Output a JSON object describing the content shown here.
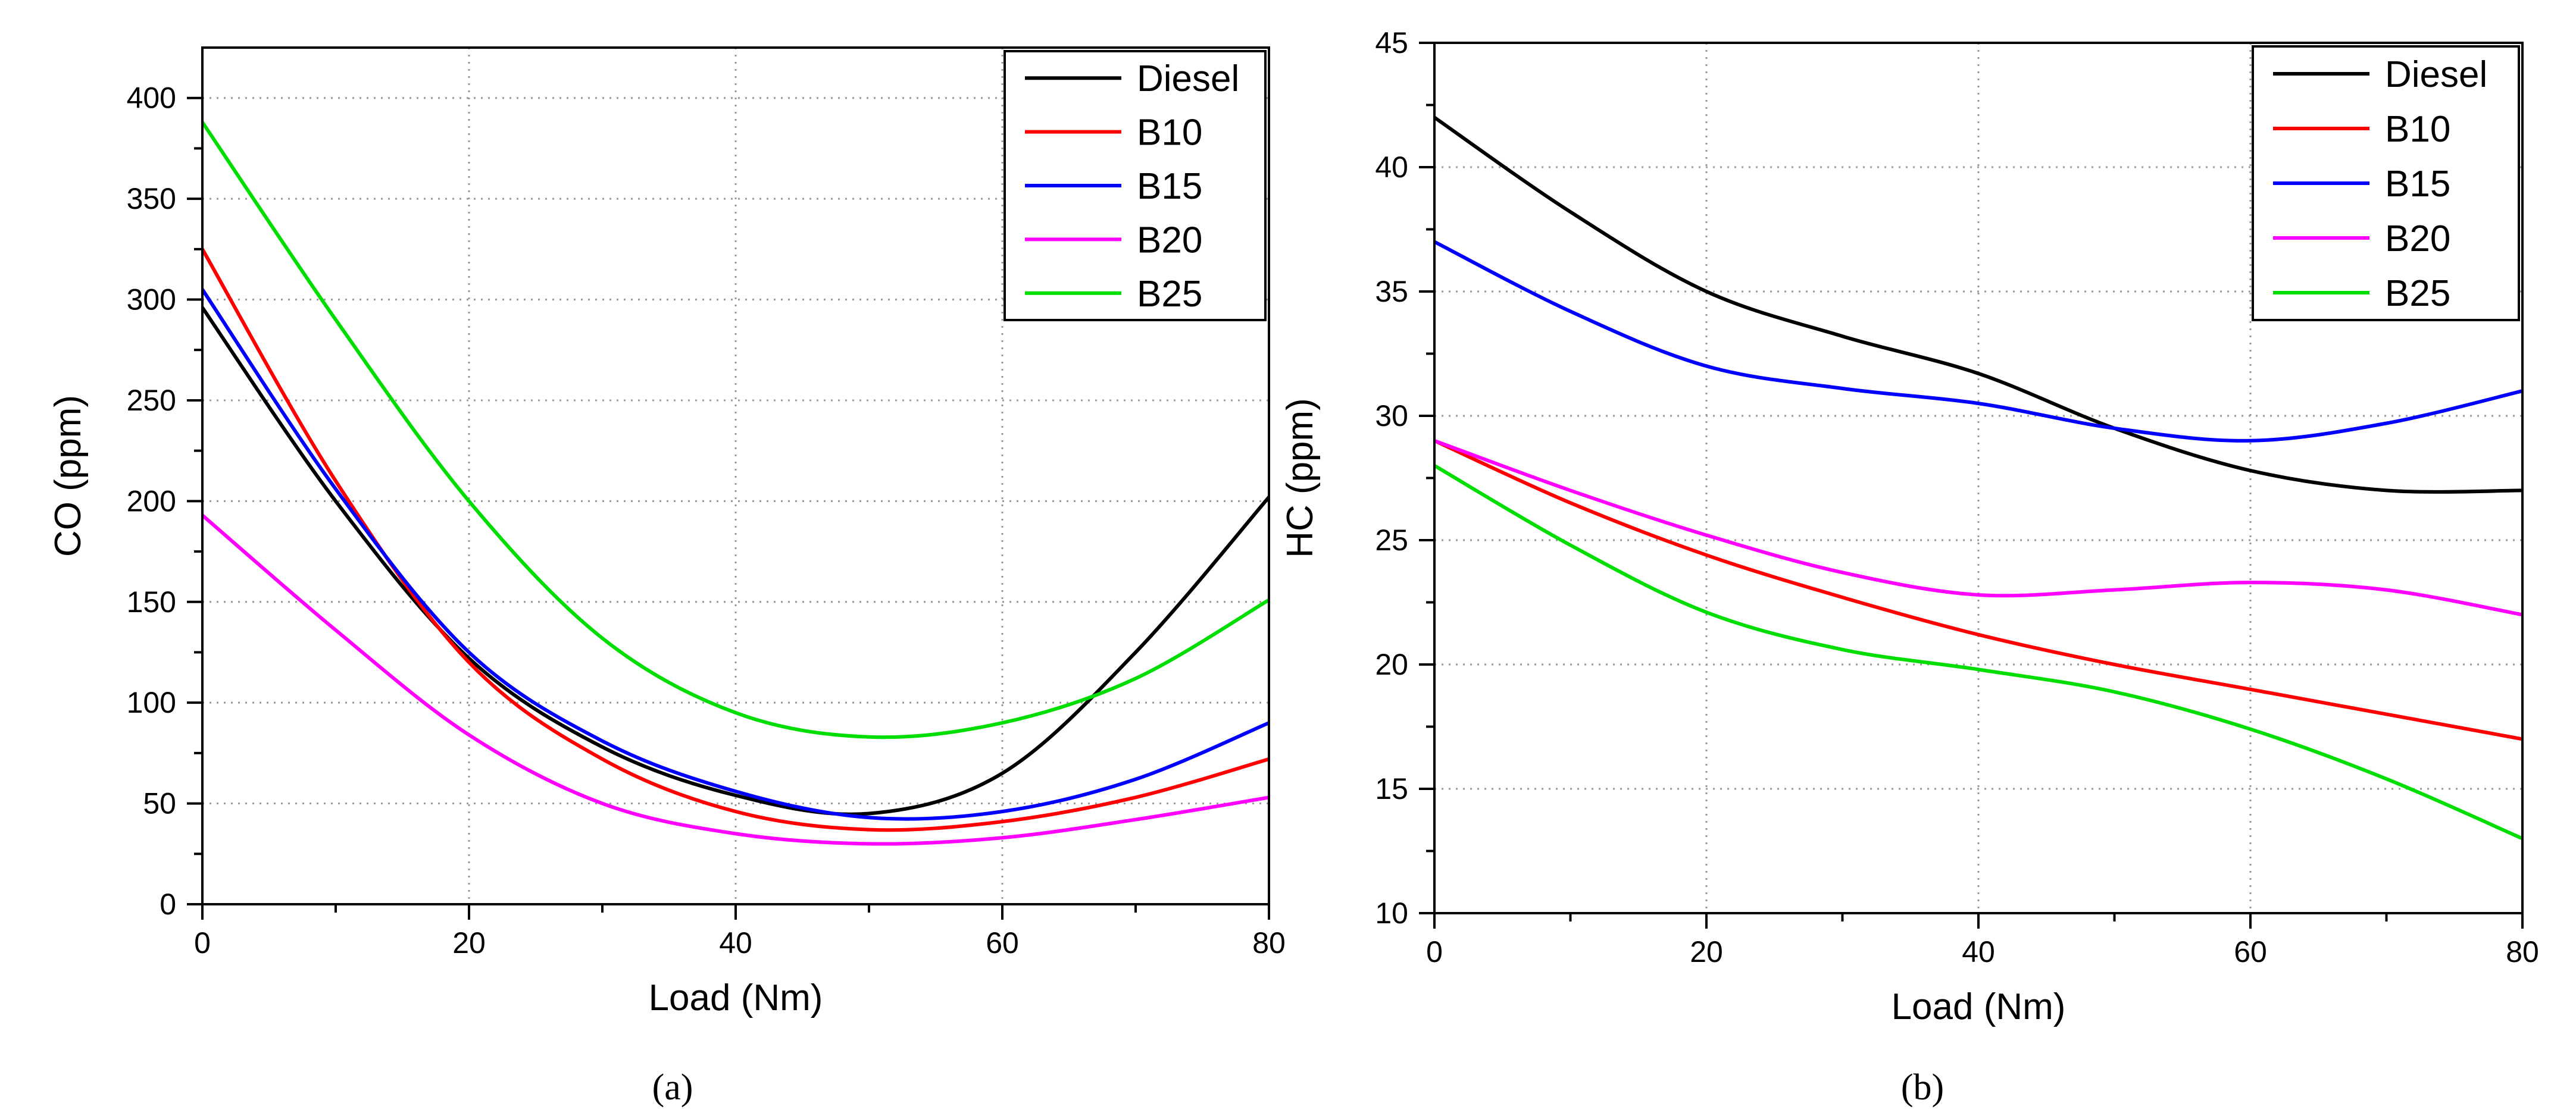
{
  "chart_data": [
    {
      "panel": "a",
      "type": "line",
      "xlabel": "Load (Nm)",
      "ylabel": "CO (ppm)",
      "xlim": [
        0,
        80
      ],
      "ylim": [
        0,
        425
      ],
      "xticks": [
        0,
        20,
        40,
        60,
        80
      ],
      "yticks": [
        0,
        50,
        100,
        150,
        200,
        250,
        300,
        350,
        400
      ],
      "grid": true,
      "legend": "top-right",
      "caption": "(a)",
      "series": [
        {
          "name": "Diesel",
          "color": "#000000",
          "x": [
            0,
            10,
            20,
            30,
            40,
            50,
            60,
            70,
            80
          ],
          "values": [
            296,
            200,
            122,
            78,
            54,
            45,
            65,
            125,
            202
          ]
        },
        {
          "name": "B10",
          "color": "#ff0000",
          "x": [
            0,
            10,
            20,
            30,
            40,
            50,
            60,
            70,
            80
          ],
          "values": [
            325,
            210,
            120,
            72,
            46,
            37,
            41,
            53,
            72
          ]
        },
        {
          "name": "B15",
          "color": "#0000ff",
          "x": [
            0,
            10,
            20,
            30,
            40,
            50,
            60,
            70,
            80
          ],
          "values": [
            305,
            206,
            125,
            81,
            56,
            43,
            46,
            62,
            90
          ]
        },
        {
          "name": "B20",
          "color": "#ff00ff",
          "x": [
            0,
            10,
            20,
            30,
            40,
            50,
            60,
            70,
            80
          ],
          "values": [
            193,
            136,
            84,
            50,
            35,
            30,
            33,
            42,
            53
          ]
        },
        {
          "name": "B25",
          "color": "#00dd00",
          "x": [
            0,
            10,
            20,
            30,
            40,
            50,
            60,
            70,
            80
          ],
          "values": [
            388,
            290,
            200,
            132,
            95,
            83,
            90,
            112,
            151
          ]
        }
      ]
    },
    {
      "panel": "b",
      "type": "line",
      "xlabel": "Load (Nm)",
      "ylabel": "HC (ppm)",
      "xlim": [
        0,
        80
      ],
      "ylim": [
        10,
        45
      ],
      "xticks": [
        0,
        20,
        40,
        60,
        80
      ],
      "yticks": [
        10,
        15,
        20,
        25,
        30,
        35,
        40,
        45
      ],
      "grid": true,
      "legend": "top-right",
      "caption": "(b)",
      "series": [
        {
          "name": "Diesel",
          "color": "#000000",
          "x": [
            0,
            10,
            20,
            30,
            40,
            50,
            60,
            70,
            80
          ],
          "values": [
            42,
            38.2,
            35,
            33.2,
            31.7,
            29.5,
            27.8,
            27,
            27
          ]
        },
        {
          "name": "B10",
          "color": "#ff0000",
          "x": [
            0,
            10,
            20,
            30,
            40,
            50,
            60,
            70,
            80
          ],
          "values": [
            29,
            26.5,
            24.4,
            22.7,
            21.2,
            20,
            19,
            18,
            17
          ]
        },
        {
          "name": "B15",
          "color": "#0000ff",
          "x": [
            0,
            10,
            20,
            30,
            40,
            50,
            60,
            70,
            80
          ],
          "values": [
            37,
            34.2,
            32,
            31.1,
            30.5,
            29.5,
            29,
            29.7,
            31
          ]
        },
        {
          "name": "B20",
          "color": "#ff00ff",
          "x": [
            0,
            10,
            20,
            30,
            40,
            50,
            60,
            70,
            80
          ],
          "values": [
            29,
            27,
            25.2,
            23.7,
            22.8,
            23,
            23.3,
            23,
            22
          ]
        },
        {
          "name": "B25",
          "color": "#00dd00",
          "x": [
            0,
            10,
            20,
            30,
            40,
            50,
            60,
            70,
            80
          ],
          "values": [
            28,
            24.8,
            22.1,
            20.6,
            19.8,
            18.9,
            17.4,
            15.4,
            13
          ]
        }
      ]
    }
  ]
}
